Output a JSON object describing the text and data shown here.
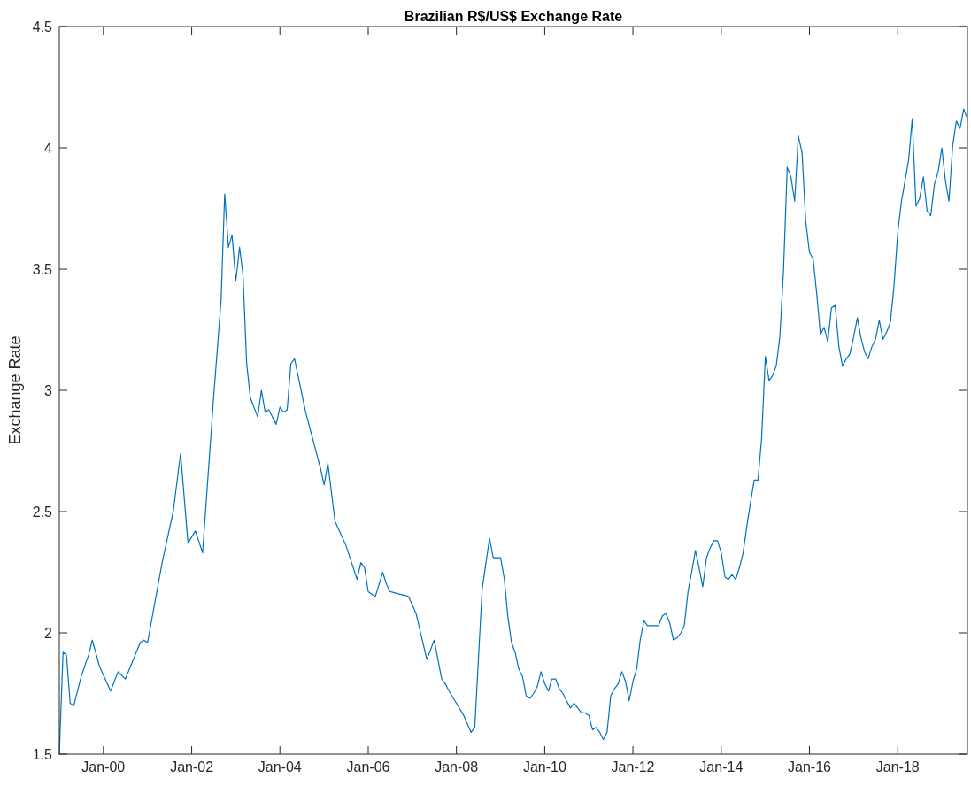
{
  "chart_data": {
    "type": "line",
    "title": "Brazilian R$/US$ Exchange Rate",
    "ylabel": "Exchange Rate",
    "series": [
      {
        "color": "#0072bd",
        "x": [
          "1999-01",
          "1999-02",
          "1999-03",
          "1999-04",
          "1999-05",
          "1999-07",
          "1999-09",
          "1999-10",
          "1999-12",
          "2000-03",
          "2000-05",
          "2000-07",
          "2000-11",
          "2000-12",
          "2001-01",
          "2001-05",
          "2001-08",
          "2001-10",
          "2001-12",
          "2002-02",
          "2002-04",
          "2002-07",
          "2002-09",
          "2002-10",
          "2002-11",
          "2002-12",
          "2003-01",
          "2003-02",
          "2003-03",
          "2003-04",
          "2003-05",
          "2003-07",
          "2003-08",
          "2003-09",
          "2003-10",
          "2003-12",
          "2004-01",
          "2004-02",
          "2004-03",
          "2004-04",
          "2004-05",
          "2004-08",
          "2004-12",
          "2005-01",
          "2005-02",
          "2005-04",
          "2005-07",
          "2005-10",
          "2005-11",
          "2005-12",
          "2006-01",
          "2006-03",
          "2006-05",
          "2006-06",
          "2006-07",
          "2006-12",
          "2007-02",
          "2007-05",
          "2007-07",
          "2007-09",
          "2007-10",
          "2007-11",
          "2008-01",
          "2008-03",
          "2008-05",
          "2008-06",
          "2008-08",
          "2008-10",
          "2008-11",
          "2009-01",
          "2009-02",
          "2009-03",
          "2009-04",
          "2009-05",
          "2009-06",
          "2009-07",
          "2009-08",
          "2009-09",
          "2009-10",
          "2009-11",
          "2009-12",
          "2010-01",
          "2010-02",
          "2010-03",
          "2010-04",
          "2010-05",
          "2010-06",
          "2010-07",
          "2010-08",
          "2010-09",
          "2010-10",
          "2010-11",
          "2010-12",
          "2011-01",
          "2011-02",
          "2011-03",
          "2011-04",
          "2011-05",
          "2011-06",
          "2011-07",
          "2011-08",
          "2011-09",
          "2011-10",
          "2011-11",
          "2011-12",
          "2012-01",
          "2012-02",
          "2012-03",
          "2012-04",
          "2012-05",
          "2012-06",
          "2012-07",
          "2012-08",
          "2012-09",
          "2012-10",
          "2012-11",
          "2012-12",
          "2013-01",
          "2013-02",
          "2013-03",
          "2013-04",
          "2013-05",
          "2013-06",
          "2013-07",
          "2013-08",
          "2013-09",
          "2013-10",
          "2013-11",
          "2013-12",
          "2014-01",
          "2014-02",
          "2014-03",
          "2014-04",
          "2014-05",
          "2014-06",
          "2014-07",
          "2014-08",
          "2014-09",
          "2014-10",
          "2014-11",
          "2014-12",
          "2015-01",
          "2015-02",
          "2015-03",
          "2015-04",
          "2015-05",
          "2015-06",
          "2015-07",
          "2015-08",
          "2015-09",
          "2015-10",
          "2015-11",
          "2015-12",
          "2016-01",
          "2016-02",
          "2016-03",
          "2016-04",
          "2016-05",
          "2016-06",
          "2016-07",
          "2016-08",
          "2016-09",
          "2016-10",
          "2016-11",
          "2016-12",
          "2017-01",
          "2017-02",
          "2017-03",
          "2017-04",
          "2017-05",
          "2017-06",
          "2017-07",
          "2017-08",
          "2017-09",
          "2017-10",
          "2017-11",
          "2017-12",
          "2018-01",
          "2018-02",
          "2018-03",
          "2018-04",
          "2018-05",
          "2018-06",
          "2018-07",
          "2018-08",
          "2018-09",
          "2018-10",
          "2018-11",
          "2018-12",
          "2019-01",
          "2019-02",
          "2019-03",
          "2019-04",
          "2019-05",
          "2019-06",
          "2019-07",
          "2019-08"
        ],
        "values": [
          1.5,
          1.92,
          1.91,
          1.71,
          1.7,
          1.82,
          1.91,
          1.97,
          1.86,
          1.76,
          1.84,
          1.81,
          1.96,
          1.97,
          1.96,
          2.29,
          2.5,
          2.74,
          2.37,
          2.42,
          2.33,
          2.97,
          3.37,
          3.81,
          3.59,
          3.64,
          3.45,
          3.59,
          3.48,
          3.11,
          2.97,
          2.89,
          3.0,
          2.91,
          2.92,
          2.86,
          2.93,
          2.91,
          2.92,
          3.11,
          3.13,
          2.91,
          2.68,
          2.61,
          2.7,
          2.46,
          2.36,
          2.22,
          2.29,
          2.27,
          2.17,
          2.15,
          2.25,
          2.2,
          2.17,
          2.15,
          2.08,
          1.89,
          1.97,
          1.81,
          1.79,
          1.76,
          1.71,
          1.66,
          1.59,
          1.61,
          2.18,
          2.39,
          2.31,
          2.31,
          2.22,
          2.07,
          1.96,
          1.92,
          1.85,
          1.82,
          1.74,
          1.73,
          1.75,
          1.78,
          1.84,
          1.79,
          1.76,
          1.81,
          1.81,
          1.77,
          1.75,
          1.72,
          1.69,
          1.71,
          1.69,
          1.67,
          1.67,
          1.66,
          1.6,
          1.61,
          1.59,
          1.56,
          1.59,
          1.74,
          1.77,
          1.79,
          1.84,
          1.8,
          1.72,
          1.8,
          1.85,
          1.97,
          2.05,
          2.03,
          2.03,
          2.03,
          2.03,
          2.07,
          2.08,
          2.04,
          1.97,
          1.98,
          2.0,
          2.03,
          2.17,
          2.25,
          2.34,
          2.27,
          2.19,
          2.31,
          2.35,
          2.38,
          2.38,
          2.33,
          2.23,
          2.22,
          2.24,
          2.22,
          2.27,
          2.33,
          2.44,
          2.54,
          2.63,
          2.63,
          2.8,
          3.14,
          3.04,
          3.06,
          3.1,
          3.22,
          3.5,
          3.92,
          3.88,
          3.78,
          4.05,
          3.98,
          3.7,
          3.57,
          3.54,
          3.4,
          3.23,
          3.26,
          3.2,
          3.34,
          3.35,
          3.18,
          3.1,
          3.13,
          3.15,
          3.22,
          3.3,
          3.22,
          3.16,
          3.13,
          3.18,
          3.21,
          3.29,
          3.21,
          3.24,
          3.28,
          3.43,
          3.65,
          3.78,
          3.86,
          3.95,
          4.12,
          3.76,
          3.79,
          3.88,
          3.74,
          3.72,
          3.85,
          3.9,
          4.0,
          3.86,
          3.78,
          4.01,
          4.11,
          4.08,
          4.16,
          4.12
        ]
      }
    ],
    "xlim": [
      "1999-01",
      "2019-08"
    ],
    "xticks": [
      {
        "value": "2000-01",
        "label": "Jan-00"
      },
      {
        "value": "2002-01",
        "label": "Jan-02"
      },
      {
        "value": "2004-01",
        "label": "Jan-04"
      },
      {
        "value": "2006-01",
        "label": "Jan-06"
      },
      {
        "value": "2008-01",
        "label": "Jan-08"
      },
      {
        "value": "2010-01",
        "label": "Jan-10"
      },
      {
        "value": "2012-01",
        "label": "Jan-12"
      },
      {
        "value": "2014-01",
        "label": "Jan-14"
      },
      {
        "value": "2016-01",
        "label": "Jan-16"
      },
      {
        "value": "2018-01",
        "label": "Jan-18"
      }
    ],
    "ylim": [
      1.5,
      4.5
    ],
    "yticks": [
      1.5,
      2,
      2.5,
      3,
      3.5,
      4,
      4.5
    ]
  }
}
